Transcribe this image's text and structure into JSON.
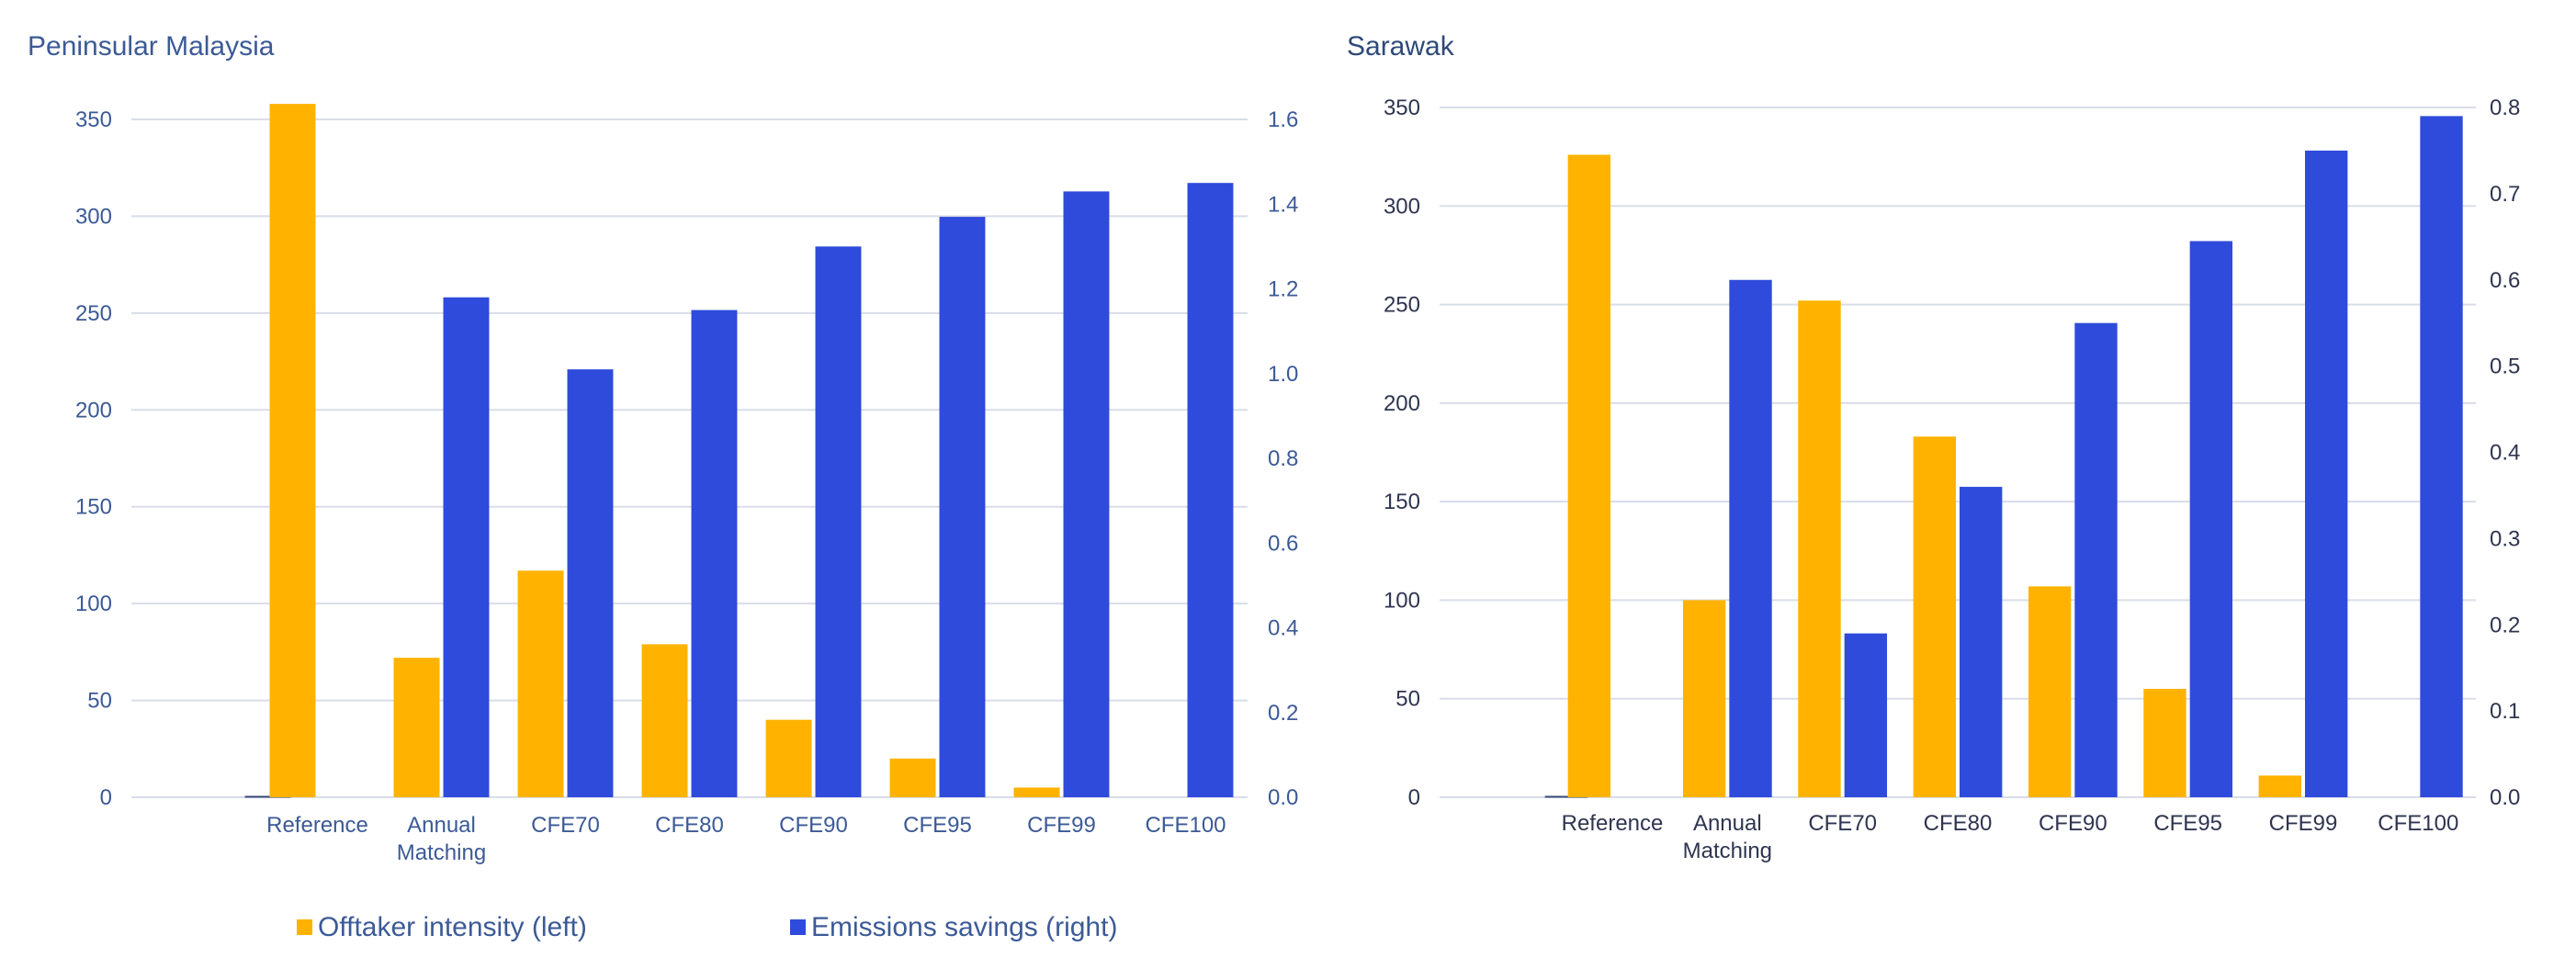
{
  "colors": {
    "offtaker": "#FFB300",
    "savings": "#2F4BDB",
    "grid": "#D9DDE8"
  },
  "legend": {
    "offtaker_label": "Offtaker intensity (left)",
    "savings_label": "Emissions savings (right)"
  },
  "chart_data": [
    {
      "type": "bar",
      "title": "Peninsular Malaysia",
      "categories": [
        [
          "Reference"
        ],
        [
          "Annual",
          "Matching"
        ],
        [
          "CFE70"
        ],
        [
          "CFE80"
        ],
        [
          "CFE90"
        ],
        [
          "CFE95"
        ],
        [
          "CFE99"
        ],
        [
          "CFE100"
        ]
      ],
      "leading_slot_small_value": 0.6,
      "series": [
        {
          "name": "Offtaker intensity (left)",
          "axis": "left",
          "values": [
            358,
            72,
            117,
            79,
            40,
            20,
            5,
            0
          ]
        },
        {
          "name": "Emissions savings (right)",
          "axis": "right",
          "values": [
            0,
            1.18,
            1.01,
            1.15,
            1.3,
            1.37,
            1.43,
            1.45
          ]
        }
      ],
      "ylim_left": [
        0,
        350
      ],
      "yticks_left": [
        "0",
        "50",
        "100",
        "150",
        "200",
        "250",
        "300",
        "350"
      ],
      "ylim_right": [
        0,
        1.6
      ],
      "yticks_right": [
        "0.0",
        "0.2",
        "0.4",
        "0.6",
        "0.8",
        "1.0",
        "1.2",
        "1.4",
        "1.6"
      ],
      "grid": true,
      "legend_position": "bottom"
    },
    {
      "type": "bar",
      "title": "Sarawak",
      "categories": [
        [
          "Reference"
        ],
        [
          "Annual",
          "Matching"
        ],
        [
          "CFE70"
        ],
        [
          "CFE80"
        ],
        [
          "CFE90"
        ],
        [
          "CFE95"
        ],
        [
          "CFE99"
        ],
        [
          "CFE100"
        ]
      ],
      "leading_slot_small_value": 0.6,
      "series": [
        {
          "name": "Offtaker intensity (left)",
          "axis": "left",
          "values": [
            326,
            100,
            252,
            183,
            107,
            55,
            11,
            0
          ]
        },
        {
          "name": "Emissions savings (right)",
          "axis": "right",
          "values": [
            0,
            0.6,
            0.19,
            0.36,
            0.55,
            0.645,
            0.75,
            0.79
          ]
        }
      ],
      "ylim_left": [
        0,
        350
      ],
      "yticks_left": [
        "0",
        "50",
        "100",
        "150",
        "200",
        "250",
        "300",
        "350"
      ],
      "ylim_right": [
        0,
        0.8
      ],
      "yticks_right": [
        "0.0",
        "0.1",
        "0.2",
        "0.3",
        "0.4",
        "0.5",
        "0.6",
        "0.7",
        "0.8"
      ],
      "grid": true,
      "legend_position": "bottom"
    }
  ]
}
